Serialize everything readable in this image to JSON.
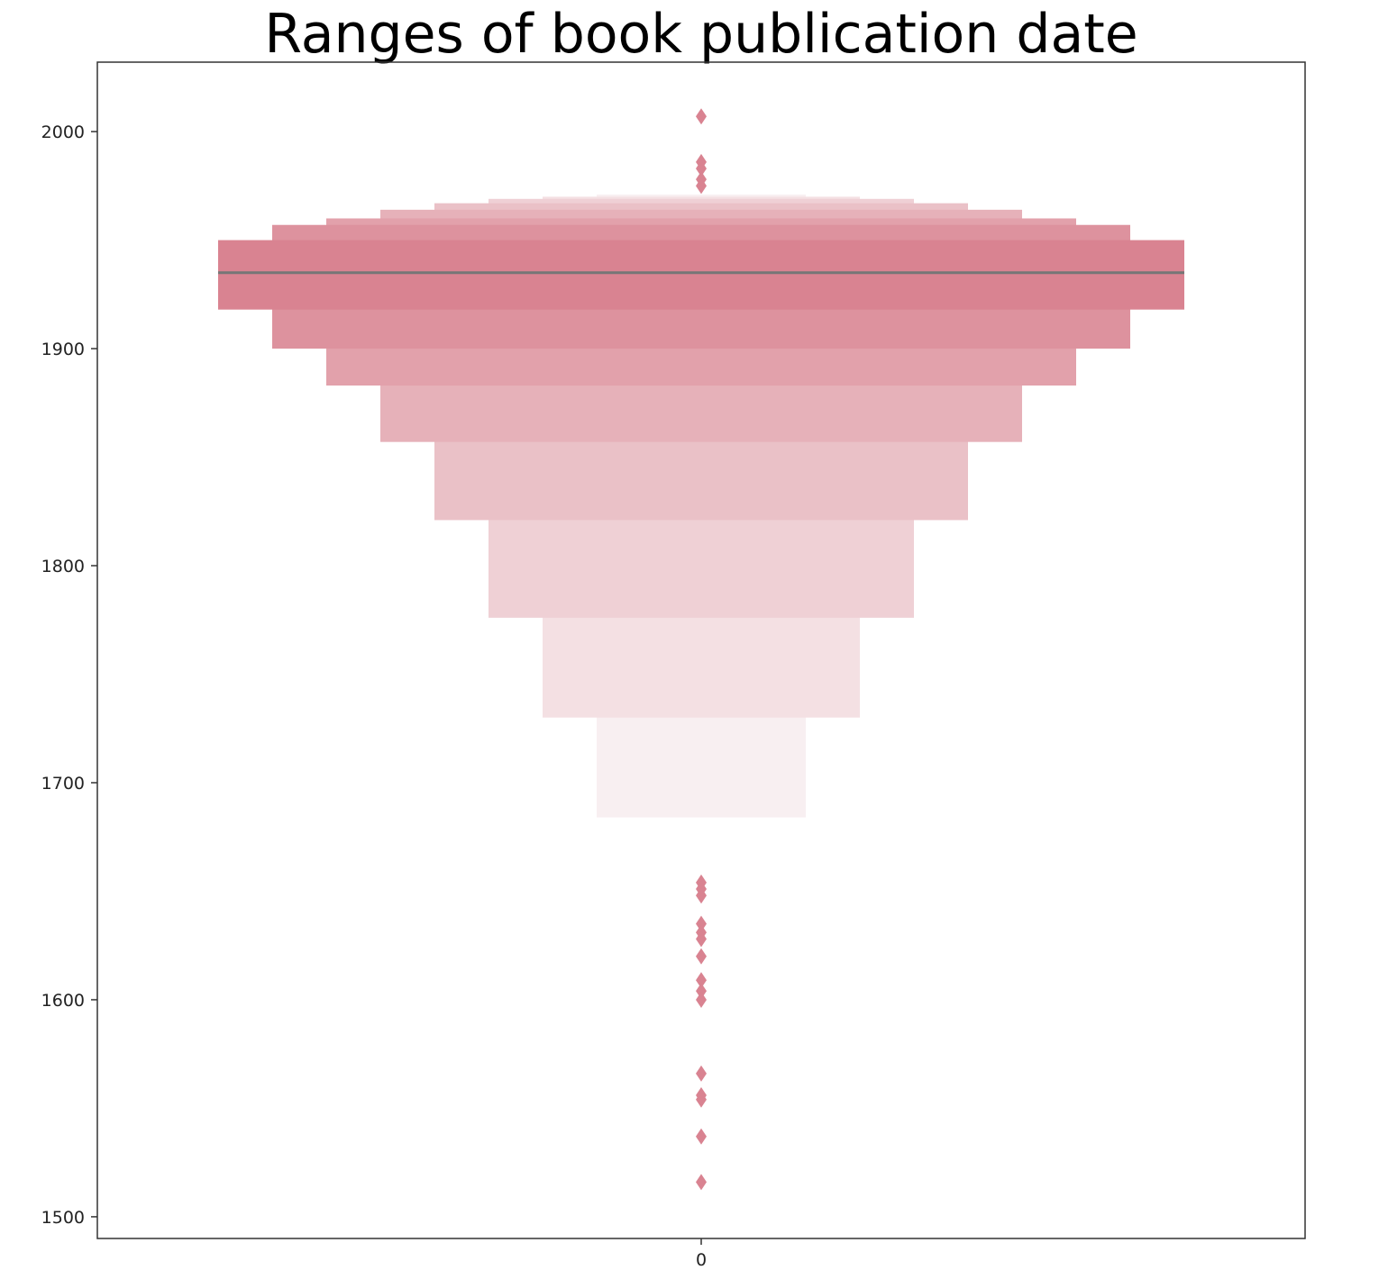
{
  "chart_data": {
    "type": "boxen",
    "title": "Ranges of book publication date",
    "xlabel": "",
    "ylabel": "",
    "categories": [
      "0"
    ],
    "ylim": [
      1490,
      2032
    ],
    "yticks": [
      1500,
      1600,
      1700,
      1800,
      1900,
      2000
    ],
    "median": 1935,
    "boxes": [
      {
        "level": 1,
        "low": 1918,
        "high": 1950,
        "color": "#d98391"
      },
      {
        "level": 2,
        "low": 1900,
        "high": 1957,
        "color": "#dd929e"
      },
      {
        "level": 3,
        "low": 1883,
        "high": 1960,
        "color": "#e2a1ab"
      },
      {
        "level": 4,
        "low": 1857,
        "high": 1964,
        "color": "#e6b1b9"
      },
      {
        "level": 5,
        "low": 1821,
        "high": 1967,
        "color": "#eac1c7"
      },
      {
        "level": 6,
        "low": 1776,
        "high": 1969,
        "color": "#efd0d5"
      },
      {
        "level": 7,
        "low": 1730,
        "high": 1970,
        "color": "#f4e0e3"
      },
      {
        "level": 8,
        "low": 1684,
        "high": 1971,
        "color": "#f8eff1"
      }
    ],
    "outliers": [
      2007,
      1986,
      1983,
      1978,
      1975,
      1654,
      1651,
      1648,
      1635,
      1631,
      1628,
      1620,
      1609,
      1604,
      1600,
      1566,
      1556,
      1554,
      1537,
      1516
    ],
    "colors": {
      "median_line": "#767676",
      "outlier": "#d98391",
      "axes": "#333333"
    }
  }
}
